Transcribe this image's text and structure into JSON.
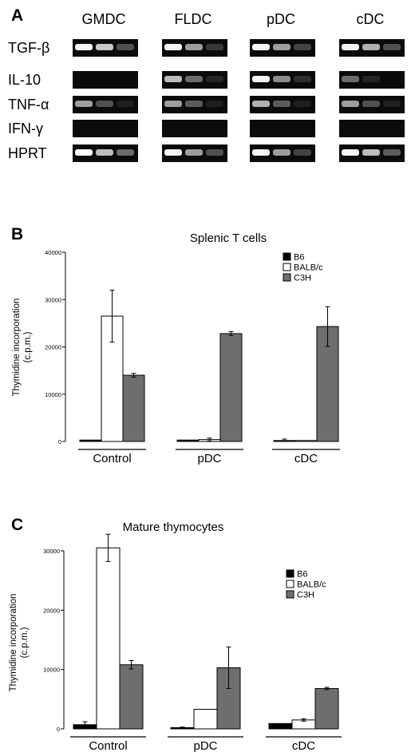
{
  "panelA": {
    "label": "A",
    "columns": [
      "GMDC",
      "FLDC",
      "pDC",
      "cDC"
    ],
    "genes": [
      "TGF-β",
      "IL-10",
      "TNF-α",
      "IFN-γ",
      "HPRT"
    ],
    "band_intensity": [
      [
        [
          0.95,
          0.75,
          0.35
        ],
        [
          0.95,
          0.6,
          0.25
        ],
        [
          0.95,
          0.6,
          0.3
        ],
        [
          0.95,
          0.65,
          0.35
        ]
      ],
      [
        [
          0,
          0,
          0
        ],
        [
          0.7,
          0.45,
          0.15
        ],
        [
          0.95,
          0.55,
          0.2
        ],
        [
          0.45,
          0.15,
          0
        ]
      ],
      [
        [
          0.6,
          0.35,
          0.1
        ],
        [
          0.6,
          0.4,
          0.1
        ],
        [
          0.65,
          0.4,
          0.1
        ],
        [
          0.6,
          0.35,
          0.1
        ]
      ],
      [
        [
          0,
          0,
          0
        ],
        [
          0,
          0,
          0
        ],
        [
          0,
          0,
          0
        ],
        [
          0,
          0,
          0
        ]
      ],
      [
        [
          1.0,
          0.7,
          0.45
        ],
        [
          0.95,
          0.6,
          0.35
        ],
        [
          0.95,
          0.6,
          0.3
        ],
        [
          0.95,
          0.7,
          0.4
        ]
      ]
    ]
  },
  "chart_data": [
    {
      "type": "bar",
      "panel_label": "B",
      "title": "Splenic T cells",
      "ylabel_line1": "Thymidine incorporation",
      "ylabel_line2": "(c.p.m.)",
      "ylim": [
        0,
        40000
      ],
      "yticks": [
        0,
        10000,
        20000,
        30000,
        40000
      ],
      "categories": [
        "Control",
        "pDC",
        "cDC"
      ],
      "series": [
        {
          "name": "B6",
          "color": "#000000",
          "values": [
            300,
            300,
            200
          ],
          "errors": [
            0,
            0,
            300
          ]
        },
        {
          "name": "BALB/c",
          "color": "#ffffff",
          "values": [
            26500,
            400,
            200
          ],
          "errors": [
            5500,
            300,
            0
          ]
        },
        {
          "name": "C3H",
          "color": "#6e6e6e",
          "values": [
            14000,
            22800,
            24300
          ],
          "errors": [
            400,
            400,
            4200
          ]
        }
      ],
      "legend_position": "top-right"
    },
    {
      "type": "bar",
      "panel_label": "C",
      "title": "Mature thymocytes",
      "ylabel_line1": "Thymidine incorporation",
      "ylabel_line2": "(c.p.m.)",
      "ylim": [
        0,
        30000
      ],
      "yticks": [
        0,
        10000,
        20000,
        30000
      ],
      "categories": [
        "Control",
        "pDC",
        "cDC"
      ],
      "series": [
        {
          "name": "B6",
          "color": "#000000",
          "values": [
            700,
            200,
            900
          ],
          "errors": [
            500,
            100,
            0
          ]
        },
        {
          "name": "BALB/c",
          "color": "#ffffff",
          "values": [
            30500,
            3300,
            1500
          ],
          "errors": [
            2300,
            0,
            200
          ]
        },
        {
          "name": "C3H",
          "color": "#6e6e6e",
          "values": [
            10800,
            10300,
            6800
          ],
          "errors": [
            700,
            3500,
            200
          ]
        }
      ],
      "legend_position": "top-right"
    }
  ]
}
